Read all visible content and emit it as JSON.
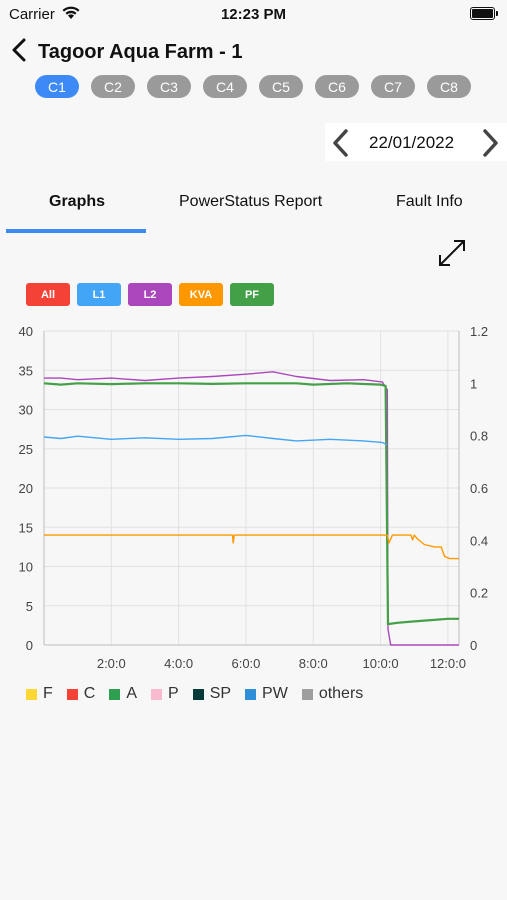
{
  "status_bar": {
    "carrier": "Carrier",
    "time": "12:23 PM"
  },
  "header": {
    "title": "Tagoor Aqua Farm - 1"
  },
  "chips": [
    {
      "label": "C1",
      "active": true
    },
    {
      "label": "C2"
    },
    {
      "label": "C3"
    },
    {
      "label": "C4"
    },
    {
      "label": "C5"
    },
    {
      "label": "C6"
    },
    {
      "label": "C7"
    },
    {
      "label": "C8"
    }
  ],
  "date": "22/01/2022",
  "tabs": [
    {
      "label": "Graphs",
      "active": true
    },
    {
      "label": "PowerStatus Report"
    },
    {
      "label": "Fault Info"
    }
  ],
  "filters": [
    {
      "label": "All",
      "color": "#f44336"
    },
    {
      "label": "L1",
      "color": "#42a5f5"
    },
    {
      "label": "L2",
      "color": "#ab47bc"
    },
    {
      "label": "KVA",
      "color": "#ff9800"
    },
    {
      "label": "PF",
      "color": "#43a047"
    }
  ],
  "legend": [
    {
      "label": "F",
      "color": "#fdd835"
    },
    {
      "label": "C",
      "color": "#f44336"
    },
    {
      "label": "A",
      "color": "#2e9e4f"
    },
    {
      "label": "P",
      "color": "#f8bbd0"
    },
    {
      "label": "SP",
      "color": "#073b3a"
    },
    {
      "label": "PW",
      "color": "#2f8fd8"
    },
    {
      "label": "others",
      "color": "#9e9e9e"
    }
  ],
  "chart_data": {
    "type": "line",
    "x_unit": "hours",
    "xlim": [
      0,
      12.33
    ],
    "x_ticks": [
      "2:0:0",
      "4:0:0",
      "6:0:0",
      "8:0:0",
      "10:0:0",
      "12:0:0"
    ],
    "ylim_left": [
      0,
      40
    ],
    "y_ticks_left": [
      "0",
      "5",
      "10",
      "15",
      "20",
      "25",
      "30",
      "35",
      "40"
    ],
    "ylim_right": [
      0,
      1.2
    ],
    "y_ticks_right": [
      "0",
      "0.2",
      "0.4",
      "0.6",
      "0.8",
      "1",
      "1.2"
    ],
    "grid": true,
    "series": [
      {
        "color": "#ab47bc",
        "axis": "left",
        "points": [
          [
            0,
            34
          ],
          [
            0.5,
            34
          ],
          [
            1,
            33.8
          ],
          [
            2,
            34
          ],
          [
            3,
            33.7
          ],
          [
            4,
            34
          ],
          [
            5,
            34.2
          ],
          [
            6,
            34.5
          ],
          [
            6.8,
            34.8
          ],
          [
            7.5,
            34.2
          ],
          [
            8.5,
            33.7
          ],
          [
            9.5,
            33.8
          ],
          [
            10.05,
            33.5
          ],
          [
            10.2,
            32.5
          ],
          [
            10.22,
            2
          ],
          [
            10.3,
            0
          ],
          [
            12.33,
            0
          ]
        ]
      },
      {
        "color": "#43a047",
        "axis": "right",
        "points": [
          [
            0,
            1.0
          ],
          [
            0.5,
            0.995
          ],
          [
            1,
            1.0
          ],
          [
            2,
            0.997
          ],
          [
            3,
            1.0
          ],
          [
            4,
            1.0
          ],
          [
            5,
            0.998
          ],
          [
            6,
            1.0
          ],
          [
            7,
            1.0
          ],
          [
            7.5,
            1.0
          ],
          [
            8,
            0.995
          ],
          [
            9,
            1.0
          ],
          [
            10,
            0.995
          ],
          [
            10.15,
            0.99
          ],
          [
            10.22,
            0.08
          ],
          [
            10.5,
            0.085
          ],
          [
            11,
            0.09
          ],
          [
            11.5,
            0.095
          ],
          [
            12,
            0.1
          ],
          [
            12.33,
            0.1
          ]
        ]
      },
      {
        "color": "#42a5f5",
        "axis": "left",
        "points": [
          [
            0,
            26.5
          ],
          [
            0.5,
            26.3
          ],
          [
            1,
            26.6
          ],
          [
            2,
            26.2
          ],
          [
            3,
            26.4
          ],
          [
            4,
            26.2
          ],
          [
            5,
            26.3
          ],
          [
            6,
            26.7
          ],
          [
            6.8,
            26.3
          ],
          [
            7.5,
            26.0
          ],
          [
            8.5,
            26.2
          ],
          [
            9.5,
            26.0
          ],
          [
            10.05,
            25.8
          ],
          [
            10.2,
            25.5
          ]
        ]
      },
      {
        "color": "#ff9800",
        "axis": "left",
        "points": [
          [
            0,
            14
          ],
          [
            5.6,
            14
          ],
          [
            5.62,
            13
          ],
          [
            5.65,
            14
          ],
          [
            10,
            14
          ],
          [
            10.2,
            14
          ],
          [
            10.25,
            13
          ],
          [
            10.35,
            14
          ],
          [
            10.6,
            14
          ],
          [
            10.9,
            14
          ],
          [
            10.95,
            13.4
          ],
          [
            11.0,
            14
          ],
          [
            11.1,
            13.5
          ],
          [
            11.3,
            12.8
          ],
          [
            11.6,
            12.5
          ],
          [
            11.8,
            12.5
          ],
          [
            11.9,
            11.3
          ],
          [
            12.05,
            11
          ],
          [
            12.33,
            11
          ]
        ]
      }
    ]
  }
}
